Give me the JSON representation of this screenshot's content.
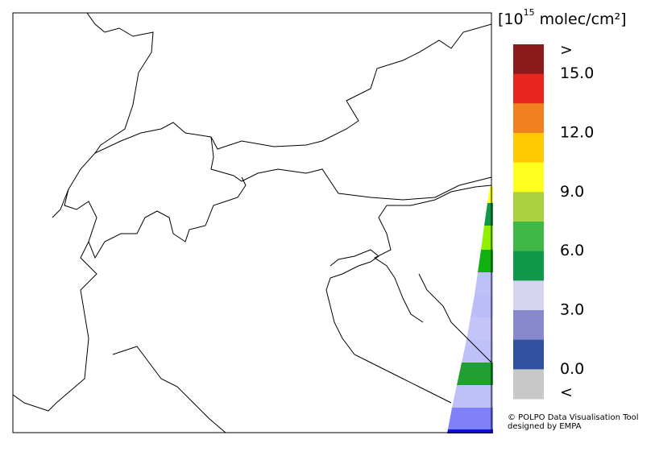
{
  "legend": {
    "unit": {
      "base": "[10",
      "exponent": "15",
      "rest": " molec/cm²]"
    },
    "colors": [
      "#8b1a1a",
      "#e8251f",
      "#f08020",
      "#ffc800",
      "#ffff1e",
      "#a8d040",
      "#40b848",
      "#109848",
      "#d4d4f0",
      "#8888cc",
      "#3050a0",
      "#c8c8c8"
    ],
    "labels": [
      ">",
      "15.0",
      "12.0",
      "9.0",
      "6.0",
      "3.0",
      "0.0",
      "<"
    ]
  },
  "credit": [
    "© POLPO Data Visualisation Tool",
    "designed by EMPA"
  ]
}
